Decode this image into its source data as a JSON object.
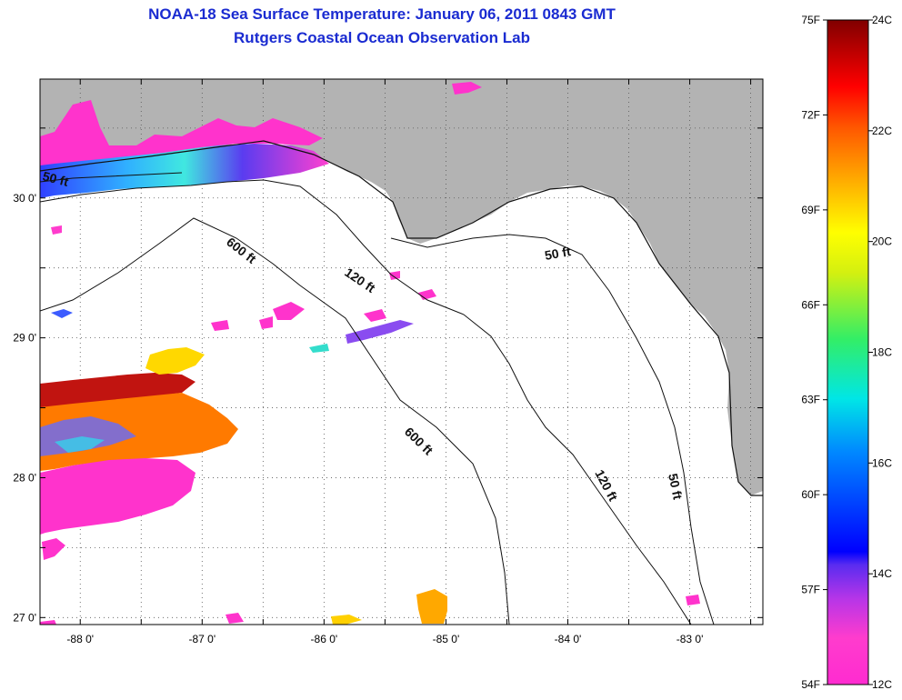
{
  "header": {
    "title": "NOAA-18 Sea Surface Temperature:  January 06, 2011 0843 GMT",
    "subtitle": "Rutgers Coastal Ocean Observation Lab"
  },
  "map": {
    "lat_labels": [
      "30 0'",
      "29 0'",
      "28 0'",
      "27 0'"
    ],
    "lon_labels": [
      "-88 0'",
      "-87 0'",
      "-86 0'",
      "-85 0'",
      "-84 0'",
      "-83 0'"
    ],
    "lat_range": [
      26.95,
      30.85
    ],
    "lon_range": [
      -88.33,
      -82.4
    ],
    "grid": "dotted",
    "depth_contours": [
      "50 ft",
      "120 ft",
      "600 ft"
    ],
    "contour_labels": [
      "50 ft",
      "600 ft",
      "120 ft",
      "600 ft",
      "50 ft",
      "120 ft",
      "50 ft"
    ],
    "colors": {
      "land": "#b3b3b3",
      "ocean_no_data": "#ffffff",
      "coldest": "#ff33cc"
    }
  },
  "colorbar": {
    "celsius_labels": [
      "24C",
      "22C",
      "20C",
      "18C",
      "16C",
      "14C",
      "12C"
    ],
    "fahrenheit_labels": [
      "75F",
      "72F",
      "69F",
      "66F",
      "63F",
      "60F",
      "57F",
      "54F"
    ],
    "celsius_range": [
      12,
      24
    ],
    "fahrenheit_range": [
      54,
      75
    ]
  }
}
